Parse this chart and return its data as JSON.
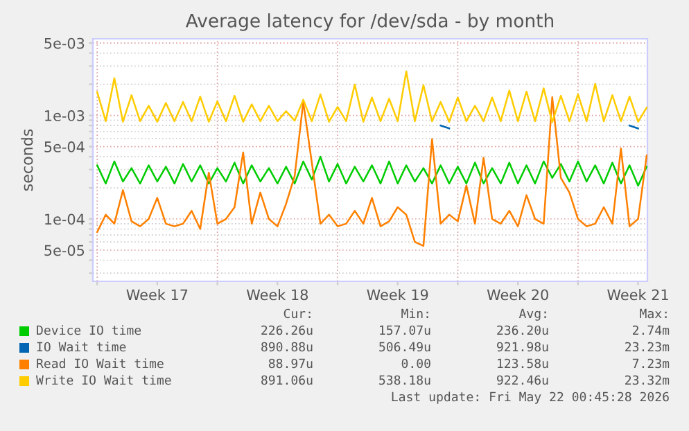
{
  "chart_data": {
    "type": "line",
    "title": "Average latency for /dev/sda - by month",
    "ylabel": "seconds",
    "log": "y",
    "grid": true,
    "legend": "bottom",
    "line_style": "solid",
    "marker": "none",
    "xlim": [
      "2026-04-19T18:00",
      "2026-05-22T01:00"
    ],
    "xticks": [
      {
        "value": "2026-04-20",
        "label": null
      },
      {
        "value": "2026-04-23T12:00",
        "label": "Week 17"
      },
      {
        "value": "2026-04-27",
        "label": null
      },
      {
        "value": "2026-04-30T12:00",
        "label": "Week 18"
      },
      {
        "value": "2026-05-04",
        "label": null
      },
      {
        "value": "2026-05-07T12:00",
        "label": "Week 19"
      },
      {
        "value": "2026-05-11",
        "label": null
      },
      {
        "value": "2026-05-14T12:00",
        "label": "Week 20"
      },
      {
        "value": "2026-05-18",
        "label": null
      },
      {
        "value": "2026-05-21T12:00",
        "label": "Week 21"
      }
    ],
    "ylim": [
      2.5e-05,
      0.0055
    ],
    "yticks": [
      {
        "value": 3e-05,
        "label": null
      },
      {
        "value": 4e-05,
        "label": null
      },
      {
        "value": 5e-05,
        "label": "5e-05"
      },
      {
        "value": 6e-05,
        "label": null
      },
      {
        "value": 7e-05,
        "label": null
      },
      {
        "value": 8e-05,
        "label": null
      },
      {
        "value": 9e-05,
        "label": null
      },
      {
        "value": 0.0001,
        "label": "1e-04"
      },
      {
        "value": 0.0002,
        "label": null
      },
      {
        "value": 0.0003,
        "label": null
      },
      {
        "value": 0.0004,
        "label": null
      },
      {
        "value": 0.0005,
        "label": "5e-04"
      },
      {
        "value": 0.0006,
        "label": null
      },
      {
        "value": 0.0007,
        "label": null
      },
      {
        "value": 0.0008,
        "label": null
      },
      {
        "value": 0.0009,
        "label": null
      },
      {
        "value": 0.001,
        "label": "1e-03"
      },
      {
        "value": 0.002,
        "label": null
      },
      {
        "value": 0.003,
        "label": null
      },
      {
        "value": 0.004,
        "label": null
      },
      {
        "value": 0.005,
        "label": "5e-03"
      }
    ],
    "x": [
      "2026-04-20T00:00",
      "2026-04-20T12:00",
      "2026-04-21T00:00",
      "2026-04-21T12:00",
      "2026-04-22T00:00",
      "2026-04-22T12:00",
      "2026-04-23T00:00",
      "2026-04-23T12:00",
      "2026-04-24T00:00",
      "2026-04-24T12:00",
      "2026-04-25T00:00",
      "2026-04-25T12:00",
      "2026-04-26T00:00",
      "2026-04-26T12:00",
      "2026-04-27T00:00",
      "2026-04-27T12:00",
      "2026-04-28T00:00",
      "2026-04-28T12:00",
      "2026-04-29T00:00",
      "2026-04-29T12:00",
      "2026-04-30T00:00",
      "2026-04-30T12:00",
      "2026-05-01T00:00",
      "2026-05-01T12:00",
      "2026-05-02T00:00",
      "2026-05-02T12:00",
      "2026-05-03T00:00",
      "2026-05-03T12:00",
      "2026-05-04T00:00",
      "2026-05-04T12:00",
      "2026-05-05T00:00",
      "2026-05-05T12:00",
      "2026-05-06T00:00",
      "2026-05-06T12:00",
      "2026-05-07T00:00",
      "2026-05-07T12:00",
      "2026-05-08T00:00",
      "2026-05-08T12:00",
      "2026-05-09T00:00",
      "2026-05-09T12:00",
      "2026-05-10T00:00",
      "2026-05-10T12:00",
      "2026-05-11T00:00",
      "2026-05-11T12:00",
      "2026-05-12T00:00",
      "2026-05-12T12:00",
      "2026-05-13T00:00",
      "2026-05-13T12:00",
      "2026-05-14T00:00",
      "2026-05-14T12:00",
      "2026-05-15T00:00",
      "2026-05-15T12:00",
      "2026-05-16T00:00",
      "2026-05-16T12:00",
      "2026-05-17T00:00",
      "2026-05-17T12:00",
      "2026-05-18T00:00",
      "2026-05-18T12:00",
      "2026-05-19T00:00",
      "2026-05-19T12:00",
      "2026-05-20T00:00",
      "2026-05-20T12:00",
      "2026-05-21T00:00",
      "2026-05-21T12:00",
      "2026-05-22T00:00"
    ],
    "series": [
      {
        "name": "Device IO time",
        "color": "#00cc00",
        "values": [
          0.00033,
          0.00022,
          0.00036,
          0.00023,
          0.00031,
          0.00022,
          0.00033,
          0.00023,
          0.00032,
          0.00022,
          0.00034,
          0.00023,
          0.00033,
          0.00022,
          0.00031,
          0.00023,
          0.00035,
          0.00022,
          0.00033,
          0.00023,
          0.00031,
          0.00022,
          0.00032,
          0.00022,
          0.00036,
          0.00024,
          0.0004,
          0.00023,
          0.00034,
          0.00022,
          0.00032,
          0.00023,
          0.00033,
          0.00022,
          0.00036,
          0.00022,
          0.00033,
          0.00023,
          0.00031,
          0.00022,
          0.00033,
          0.00022,
          0.00032,
          0.00022,
          0.00035,
          0.00022,
          0.00031,
          0.00022,
          0.00035,
          0.00022,
          0.00033,
          0.00022,
          0.00036,
          0.00025,
          0.00034,
          0.00023,
          0.00036,
          0.00023,
          0.00033,
          0.00022,
          0.00035,
          0.00022,
          0.00033,
          0.00021,
          0.00032
        ]
      },
      {
        "name": "IO Wait time",
        "color": "#0066b3",
        "values": [
          null,
          null,
          null,
          null,
          null,
          null,
          null,
          null,
          null,
          null,
          null,
          null,
          null,
          null,
          null,
          null,
          null,
          null,
          null,
          null,
          null,
          null,
          null,
          null,
          null,
          null,
          null,
          null,
          null,
          null,
          null,
          null,
          null,
          null,
          null,
          null,
          null,
          null,
          null,
          null,
          0.0008,
          0.00075,
          null,
          null,
          null,
          null,
          null,
          null,
          null,
          null,
          null,
          null,
          null,
          null,
          null,
          null,
          null,
          null,
          null,
          null,
          null,
          null,
          0.0008,
          0.00075,
          null
        ]
      },
      {
        "name": "Read IO Wait time",
        "color": "#ff8000",
        "values": [
          7.5e-05,
          0.00011,
          9e-05,
          0.00019,
          9.5e-05,
          8.5e-05,
          0.0001,
          0.00016,
          9e-05,
          8.5e-05,
          9e-05,
          0.00012,
          8e-05,
          0.00028,
          9e-05,
          0.0001,
          0.00013,
          0.00044,
          9e-05,
          0.00018,
          0.0001,
          8.5e-05,
          0.00014,
          0.00026,
          0.00135,
          0.00035,
          9e-05,
          0.00011,
          8.5e-05,
          9e-05,
          0.00012,
          9e-05,
          0.00016,
          8.5e-05,
          9.5e-05,
          0.00013,
          0.00011,
          6e-05,
          5.5e-05,
          0.00059,
          9e-05,
          0.00011,
          9.5e-05,
          0.00021,
          9e-05,
          0.00039,
          0.0001,
          9e-05,
          0.00012,
          8.5e-05,
          0.00017,
          0.0001,
          9e-05,
          0.0015,
          0.00025,
          0.00018,
          0.0001,
          8.5e-05,
          9e-05,
          0.00013,
          9e-05,
          0.00048,
          8.5e-05,
          0.0001,
          0.00041
        ]
      },
      {
        "name": "Write IO Wait time",
        "color": "#ffcc00",
        "values": [
          0.00168,
          0.00088,
          0.00229,
          0.00087,
          0.00157,
          0.00088,
          0.00124,
          0.00087,
          0.00132,
          0.00088,
          0.00135,
          0.00088,
          0.00152,
          0.00087,
          0.00137,
          0.00088,
          0.00155,
          0.00087,
          0.00128,
          0.00088,
          0.00124,
          0.00088,
          0.0011,
          0.00089,
          0.00142,
          0.00088,
          0.0016,
          0.00087,
          0.00121,
          0.00088,
          0.00199,
          0.00087,
          0.00149,
          0.00088,
          0.00145,
          0.00088,
          0.00267,
          0.00088,
          0.00196,
          0.00088,
          0.00135,
          0.00087,
          0.00149,
          0.00088,
          0.00124,
          0.00088,
          0.00149,
          0.00088,
          0.00174,
          0.00088,
          0.0017,
          0.00088,
          0.00183,
          0.00086,
          0.00155,
          0.00088,
          0.0016,
          0.00088,
          0.00202,
          0.00088,
          0.00157,
          0.00088,
          0.00152,
          0.00087,
          0.00119
        ]
      }
    ],
    "annotations": [
      "Cur:",
      "Min:",
      "Avg:",
      "Max:",
      "226.26u",
      "157.07u",
      "236.20u",
      "2.74m",
      "890.88u",
      "506.49u",
      "921.98u",
      "23.23m",
      "88.97u",
      "0.00",
      "123.58u",
      "7.23m",
      "891.06u",
      "538.18u",
      "922.46u",
      "23.32m",
      "Last update: Fri May 22 00:45:28 2026"
    ]
  }
}
